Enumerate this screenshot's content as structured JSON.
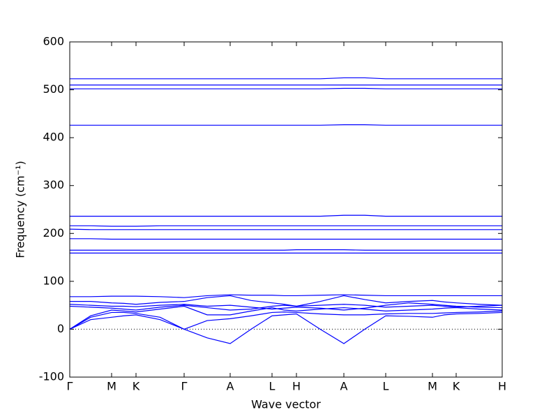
{
  "chart_data": {
    "type": "line",
    "xlabel": "Wave vector",
    "ylabel": "Frequency (cm⁻¹)",
    "x": [
      0,
      0.3,
      0.6,
      0.775,
      0.95,
      1.295,
      1.64,
      1.97,
      2.3,
      2.6,
      2.9,
      3.075,
      3.25,
      3.59,
      3.93,
      4.23,
      4.53,
      4.865,
      5.2,
      5.37,
      5.54,
      5.87,
      6.2
    ],
    "xlim": [
      0,
      6.2
    ],
    "xticks": [
      {
        "value": 0,
        "label": "Γ"
      },
      {
        "value": 0.6,
        "label": "M"
      },
      {
        "value": 0.95,
        "label": "K"
      },
      {
        "value": 1.64,
        "label": "Γ"
      },
      {
        "value": 2.3,
        "label": "A"
      },
      {
        "value": 2.9,
        "label": "L"
      },
      {
        "value": 3.25,
        "label": "H"
      },
      {
        "value": 3.93,
        "label": "A"
      },
      {
        "value": 4.53,
        "label": "L"
      },
      {
        "value": 5.2,
        "label": "M"
      },
      {
        "value": 5.54,
        "label": "K"
      },
      {
        "value": 6.2,
        "label": "H"
      }
    ],
    "ylim": [
      -100,
      600
    ],
    "yticks": [
      -100,
      0,
      100,
      200,
      300,
      400,
      500,
      600
    ],
    "zero_line": true,
    "series": [
      {
        "color": "#0000ff",
        "values": [
          0,
          20,
          25,
          28,
          30,
          20,
          0,
          -18,
          -30,
          0,
          28,
          30,
          32,
          0,
          -30,
          0,
          28,
          27,
          25,
          30,
          32,
          33,
          35
        ]
      },
      {
        "color": "#0000ff",
        "values": [
          0,
          25,
          35,
          35,
          33,
          25,
          0,
          18,
          22,
          28,
          35,
          36,
          35,
          32,
          30,
          30,
          32,
          33,
          33,
          34,
          35,
          36,
          38
        ]
      },
      {
        "color": "#0000ff",
        "values": [
          0,
          28,
          40,
          38,
          36,
          42,
          48,
          30,
          30,
          38,
          45,
          40,
          38,
          42,
          45,
          42,
          38,
          40,
          42,
          44,
          45,
          42,
          40
        ]
      },
      {
        "color": "#0000ff",
        "values": [
          48,
          46,
          44,
          42,
          40,
          46,
          50,
          45,
          40,
          42,
          48,
          50,
          48,
          50,
          52,
          50,
          46,
          48,
          50,
          48,
          46,
          48,
          50
        ]
      },
      {
        "color": "#0000ff",
        "values": [
          52,
          50,
          48,
          48,
          47,
          50,
          52,
          48,
          50,
          46,
          42,
          44,
          46,
          44,
          40,
          44,
          50,
          55,
          52,
          50,
          48,
          46,
          45
        ]
      },
      {
        "color": "#0000ff",
        "values": [
          58,
          58,
          55,
          54,
          52,
          56,
          58,
          66,
          70,
          60,
          55,
          52,
          48,
          58,
          70,
          62,
          55,
          58,
          60,
          57,
          55,
          52,
          50
        ]
      },
      {
        "color": "#0000ff",
        "values": [
          68,
          68,
          69,
          69,
          69,
          68,
          66,
          70,
          72,
          71,
          71,
          70,
          70,
          71,
          72,
          71,
          70,
          70,
          70,
          70,
          70,
          70,
          70
        ]
      },
      {
        "color": "#0000ff",
        "values": [
          159,
          159,
          159,
          159,
          159,
          159,
          159,
          159,
          159,
          159,
          159,
          159,
          159,
          159,
          159,
          159,
          159,
          159,
          159,
          159,
          159,
          159,
          159
        ]
      },
      {
        "color": "#0000ff",
        "values": [
          165,
          165,
          165,
          165,
          165,
          165,
          165,
          165,
          165,
          165,
          165,
          165,
          166,
          166,
          166,
          165,
          165,
          165,
          165,
          165,
          165,
          165,
          165
        ]
      },
      {
        "color": "#0000ff",
        "values": [
          189,
          189,
          188,
          188,
          188,
          188,
          188,
          188,
          188,
          188,
          188,
          188,
          188,
          188,
          188,
          188,
          188,
          188,
          188,
          188,
          188,
          188,
          188
        ]
      },
      {
        "color": "#0000ff",
        "values": [
          209,
          208,
          208,
          208,
          208,
          208,
          208,
          208,
          208,
          208,
          208,
          208,
          208,
          208,
          208,
          208,
          208,
          208,
          208,
          208,
          208,
          208,
          208
        ]
      },
      {
        "color": "#0000ff",
        "values": [
          216,
          216,
          215,
          215,
          215,
          216,
          216,
          216,
          216,
          216,
          216,
          216,
          216,
          216,
          216,
          216,
          216,
          216,
          216,
          216,
          216,
          216,
          216
        ]
      },
      {
        "color": "#0000ff",
        "values": [
          236,
          236,
          236,
          236,
          236,
          236,
          236,
          236,
          236,
          236,
          236,
          236,
          236,
          236,
          238,
          238,
          236,
          236,
          236,
          236,
          236,
          236,
          236
        ]
      },
      {
        "color": "#0000ff",
        "values": [
          426,
          426,
          426,
          426,
          426,
          426,
          426,
          426,
          426,
          426,
          426,
          426,
          426,
          426,
          427,
          427,
          426,
          426,
          426,
          426,
          426,
          426,
          426
        ]
      },
      {
        "color": "#0000ff",
        "values": [
          502,
          502,
          502,
          502,
          502,
          502,
          502,
          502,
          502,
          502,
          502,
          502,
          502,
          502,
          503,
          503,
          502,
          502,
          502,
          502,
          502,
          502,
          502
        ]
      },
      {
        "color": "#0000ff",
        "values": [
          510,
          510,
          510,
          510,
          510,
          510,
          510,
          510,
          510,
          510,
          510,
          510,
          510,
          510,
          510,
          510,
          510,
          510,
          510,
          510,
          510,
          510,
          510
        ]
      },
      {
        "color": "#0000ff",
        "values": [
          523,
          523,
          523,
          523,
          523,
          523,
          523,
          523,
          523,
          523,
          523,
          523,
          523,
          523,
          525,
          525,
          523,
          523,
          523,
          523,
          523,
          523,
          523
        ]
      }
    ]
  }
}
